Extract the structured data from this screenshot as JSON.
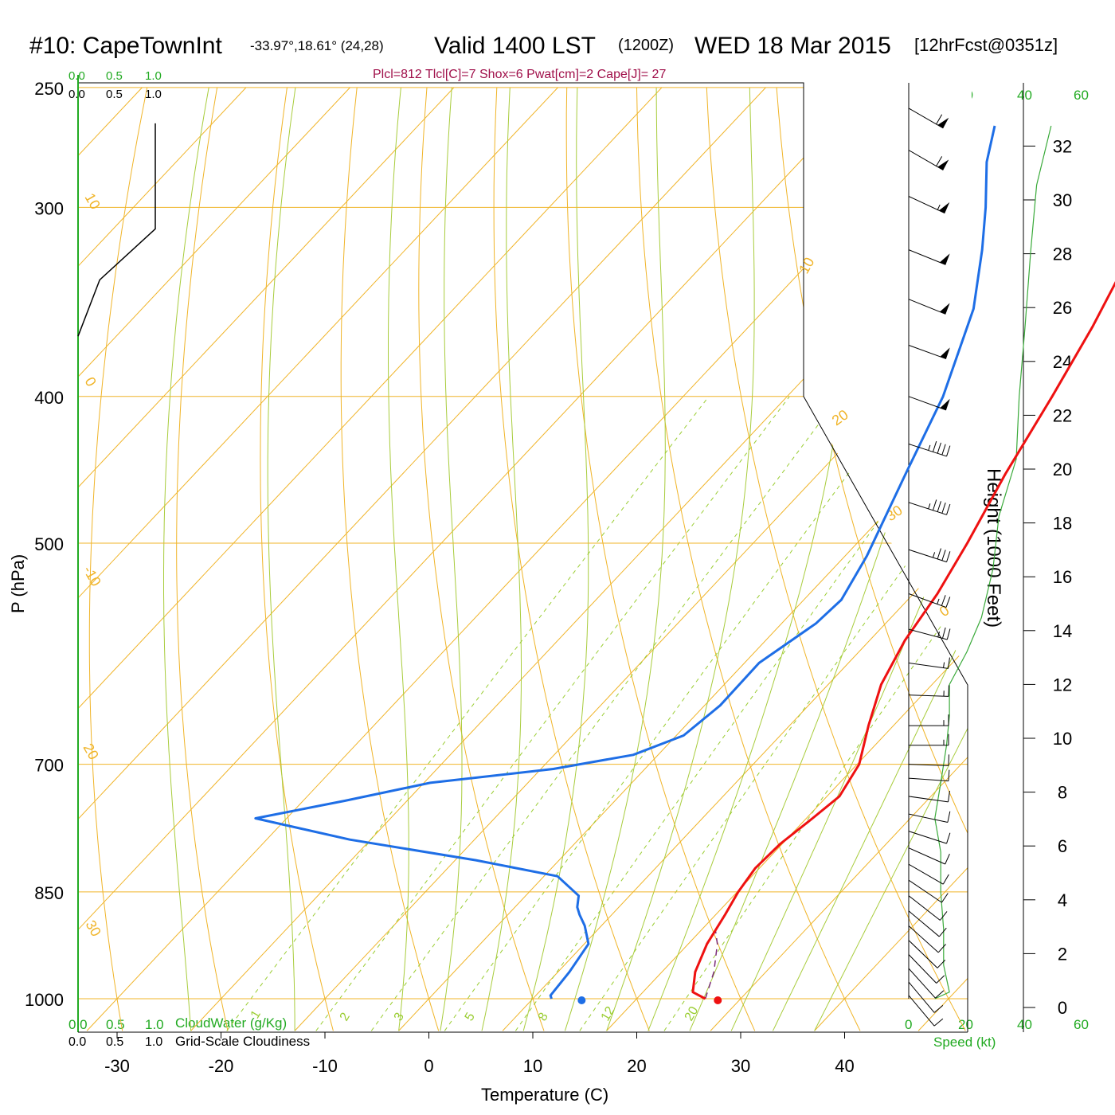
{
  "header": {
    "station": "#10: CapeTownInt",
    "location": "-33.97°,18.61° (24,28)",
    "valid": "Valid 1400 LST",
    "utc": "(1200Z)",
    "date": "WED 18 Mar 2015",
    "forecast": "[12hrFcst@0351z]",
    "indices": "Plcl=812 Tlcl[C]=7 Shox=6 Pwat[cm]=2 Cape[J]= 27"
  },
  "scale_labels": {
    "cloudwater_ticks": [
      "0.0",
      "0.5",
      "1.0"
    ],
    "cloudiness_ticks": [
      "0.0",
      "0.5",
      "1.0"
    ],
    "cloudwater_title": "CloudWater (g/Kg)",
    "cloudiness_title": "Grid-Scale Cloudiness",
    "speed_ticks": [
      "0",
      "20",
      "40",
      "60"
    ],
    "speed_title": "Speed (kt)"
  },
  "axes": {
    "ylabel": "P (hPa)",
    "xlabel": "Temperature (C)",
    "height_label": "Height (1000 Feet)"
  },
  "colors": {
    "temperature": "#ee1111",
    "dewpoint": "#1e6ee6",
    "isotherm": "#f0b428",
    "mixing_ratio": "#9acd32",
    "adiabat": "#a8cc3c",
    "speed": "#3aaa3a",
    "parcel": "#7a2a7a",
    "index_text": "#a0104a"
  },
  "chart_data": {
    "type": "skew-t",
    "x_range": [
      -34,
      46
    ],
    "p_range": [
      1050,
      250
    ],
    "x_ticks": [
      -30,
      -20,
      -10,
      0,
      10,
      20,
      30,
      40
    ],
    "x_tick_labels": [
      "-30",
      "-20",
      "-10",
      "0",
      "10",
      "20",
      "30",
      "40"
    ],
    "p_ticks": [
      1000,
      850,
      700,
      500,
      400,
      300,
      250
    ],
    "p_tick_labels": [
      "1000",
      "850",
      "700",
      "500",
      "400",
      "300",
      "250"
    ],
    "isotherm_labels": [
      {
        "t": -30,
        "text": "30"
      },
      {
        "t": -20,
        "text": "20"
      },
      {
        "t": -10,
        "text": "-10"
      },
      {
        "t": 0,
        "text": "0"
      },
      {
        "t": 10,
        "text": "10"
      },
      {
        "t": 10,
        "text": "10"
      },
      {
        "t": 20,
        "text": "20"
      },
      {
        "t": 30,
        "text": "30"
      },
      {
        "t": 0,
        "text": "0"
      }
    ],
    "mixing_ratio_labels": [
      "1",
      "2",
      "3",
      "5",
      "8",
      "12",
      "20"
    ],
    "temperature": [
      {
        "p": 1000,
        "t": 26.6
      },
      {
        "p": 990,
        "t": 24.8
      },
      {
        "p": 960,
        "t": 23.2
      },
      {
        "p": 920,
        "t": 21.8
      },
      {
        "p": 880,
        "t": 20.9
      },
      {
        "p": 850,
        "t": 20.1
      },
      {
        "p": 820,
        "t": 19.6
      },
      {
        "p": 790,
        "t": 19.8
      },
      {
        "p": 760,
        "t": 20.6
      },
      {
        "p": 735,
        "t": 21.2
      },
      {
        "p": 700,
        "t": 20.2
      },
      {
        "p": 660,
        "t": 17.6
      },
      {
        "p": 620,
        "t": 15.1
      },
      {
        "p": 580,
        "t": 13.4
      },
      {
        "p": 540,
        "t": 12.3
      },
      {
        "p": 500,
        "t": 10.6
      },
      {
        "p": 450,
        "t": 8.0
      },
      {
        "p": 400,
        "t": 5.5
      },
      {
        "p": 360,
        "t": 3.1
      },
      {
        "p": 330,
        "t": 0.8
      },
      {
        "p": 300,
        "t": -2.3
      },
      {
        "p": 280,
        "t": -4.8
      },
      {
        "p": 265,
        "t": -7.0
      }
    ],
    "dewpoint": [
      {
        "p": 1000,
        "t": 11.8
      },
      {
        "p": 995,
        "t": 11.4
      },
      {
        "p": 960,
        "t": 11.1
      },
      {
        "p": 920,
        "t": 10.4
      },
      {
        "p": 895,
        "t": 8.4
      },
      {
        "p": 880,
        "t": 6.9
      },
      {
        "p": 870,
        "t": 6.0
      },
      {
        "p": 855,
        "t": 5.1
      },
      {
        "p": 830,
        "t": 1.3
      },
      {
        "p": 810,
        "t": -8.0
      },
      {
        "p": 785,
        "t": -22.0
      },
      {
        "p": 760,
        "t": -33.0
      },
      {
        "p": 740,
        "t": -26.0
      },
      {
        "p": 720,
        "t": -19.4
      },
      {
        "p": 705,
        "t": -8.8
      },
      {
        "p": 690,
        "t": -2.4
      },
      {
        "p": 670,
        "t": 0.7
      },
      {
        "p": 640,
        "t": 1.5
      },
      {
        "p": 600,
        "t": 1.4
      },
      {
        "p": 565,
        "t": 3.3
      },
      {
        "p": 545,
        "t": 3.6
      },
      {
        "p": 510,
        "t": 2.1
      },
      {
        "p": 450,
        "t": -1.6
      },
      {
        "p": 400,
        "t": -5.0
      },
      {
        "p": 350,
        "t": -10.0
      },
      {
        "p": 320,
        "t": -14.5
      },
      {
        "p": 300,
        "t": -18.0
      },
      {
        "p": 280,
        "t": -22.0
      },
      {
        "p": 265,
        "t": -24.5
      }
    ],
    "parcel": [
      {
        "p": 1000,
        "t": 26.6
      },
      {
        "p": 960,
        "t": 25.0
      },
      {
        "p": 920,
        "t": 22.8
      },
      {
        "p": 900,
        "t": 21.3
      }
    ],
    "surface_temperature": 27.8,
    "surface_dewpoint": 14.7,
    "winds": [
      {
        "p": 995,
        "spd": 12,
        "dir": 220
      },
      {
        "p": 975,
        "spd": 12,
        "dir": 220
      },
      {
        "p": 955,
        "spd": 12,
        "dir": 222
      },
      {
        "p": 935,
        "spd": 12,
        "dir": 224
      },
      {
        "p": 915,
        "spd": 11,
        "dir": 226
      },
      {
        "p": 895,
        "spd": 11,
        "dir": 228
      },
      {
        "p": 875,
        "spd": 10,
        "dir": 230
      },
      {
        "p": 855,
        "spd": 10,
        "dir": 232
      },
      {
        "p": 835,
        "spd": 10,
        "dir": 236
      },
      {
        "p": 815,
        "spd": 10,
        "dir": 240
      },
      {
        "p": 795,
        "spd": 10,
        "dir": 246
      },
      {
        "p": 775,
        "spd": 10,
        "dir": 252
      },
      {
        "p": 755,
        "spd": 10,
        "dir": 258
      },
      {
        "p": 735,
        "spd": 10,
        "dir": 262
      },
      {
        "p": 715,
        "spd": 12,
        "dir": 266
      },
      {
        "p": 700,
        "spd": 14,
        "dir": 268
      },
      {
        "p": 680,
        "spd": 15,
        "dir": 270
      },
      {
        "p": 660,
        "spd": 15,
        "dir": 270
      },
      {
        "p": 630,
        "spd": 15,
        "dir": 268
      },
      {
        "p": 600,
        "spd": 15,
        "dir": 262
      },
      {
        "p": 570,
        "spd": 25,
        "dir": 255
      },
      {
        "p": 540,
        "spd": 25,
        "dir": 250
      },
      {
        "p": 505,
        "spd": 35,
        "dir": 252
      },
      {
        "p": 470,
        "spd": 45,
        "dir": 252
      },
      {
        "p": 430,
        "spd": 45,
        "dir": 252
      },
      {
        "p": 400,
        "spd": 50,
        "dir": 250
      },
      {
        "p": 370,
        "spd": 50,
        "dir": 250
      },
      {
        "p": 345,
        "spd": 50,
        "dir": 248
      },
      {
        "p": 320,
        "spd": 50,
        "dir": 248
      },
      {
        "p": 295,
        "spd": 55,
        "dir": 245
      },
      {
        "p": 275,
        "spd": 60,
        "dir": 240
      },
      {
        "p": 258,
        "spd": 60,
        "dir": 240
      }
    ],
    "height_ticks": [
      0,
      2,
      4,
      6,
      8,
      10,
      12,
      14,
      16,
      18,
      20,
      22,
      24,
      26,
      28,
      30,
      32
    ],
    "height_tick_labels": [
      "0",
      "2",
      "4",
      "6",
      "8",
      "10",
      "12",
      "14",
      "16",
      "18",
      "20",
      "22",
      "24",
      "26",
      "28",
      "30",
      "32"
    ],
    "wind_speed_profile": [
      {
        "p": 1000,
        "spd": 9
      },
      {
        "p": 990,
        "spd": 14
      },
      {
        "p": 950,
        "spd": 12
      },
      {
        "p": 900,
        "spd": 12
      },
      {
        "p": 850,
        "spd": 11
      },
      {
        "p": 800,
        "spd": 11
      },
      {
        "p": 760,
        "spd": 9
      },
      {
        "p": 720,
        "spd": 11
      },
      {
        "p": 680,
        "spd": 13
      },
      {
        "p": 650,
        "spd": 14
      },
      {
        "p": 620,
        "spd": 14
      },
      {
        "p": 590,
        "spd": 20
      },
      {
        "p": 560,
        "spd": 25
      },
      {
        "p": 520,
        "spd": 29
      },
      {
        "p": 480,
        "spd": 31
      },
      {
        "p": 440,
        "spd": 37
      },
      {
        "p": 400,
        "spd": 38
      },
      {
        "p": 360,
        "spd": 40
      },
      {
        "p": 320,
        "spd": 42
      },
      {
        "p": 290,
        "spd": 44
      },
      {
        "p": 265,
        "spd": 49
      }
    ],
    "cloudiness_profile": [
      {
        "p": 250,
        "v": 1.0
      },
      {
        "p": 310,
        "v": 1.0
      },
      {
        "p": 335,
        "v": 0.28
      },
      {
        "p": 365,
        "v": 0.0
      }
    ]
  }
}
